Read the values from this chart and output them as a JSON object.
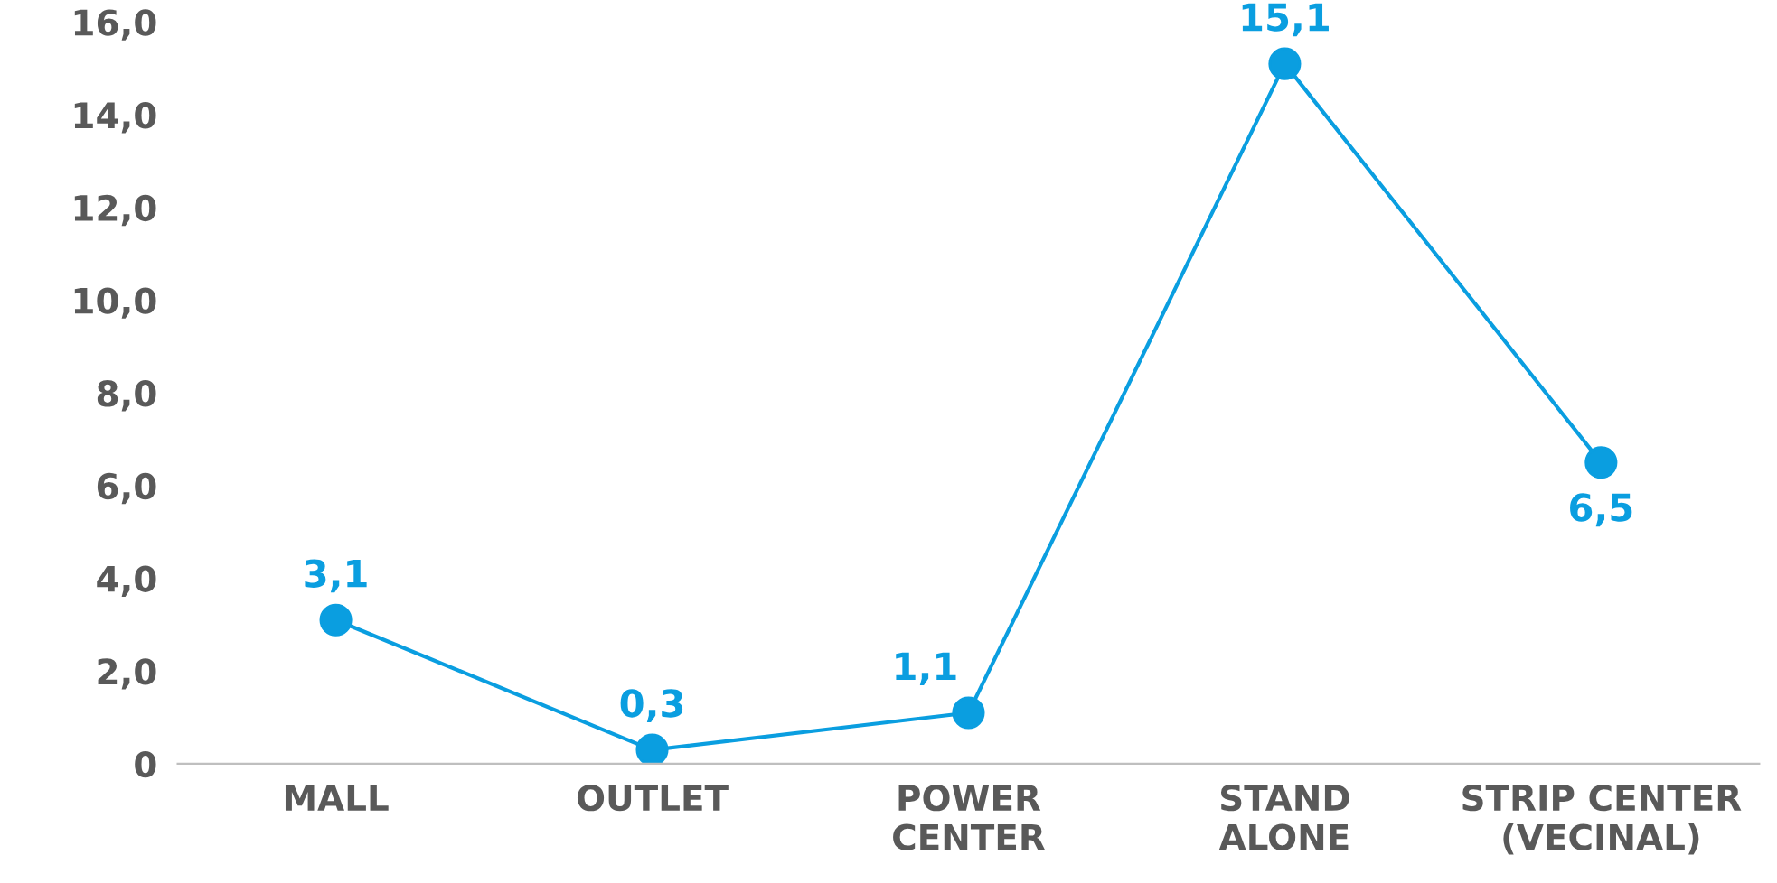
{
  "chart_data": {
    "type": "line",
    "categories": [
      "MALL",
      "OUTLET",
      "POWER\nCENTER",
      "STAND\nALONE",
      "STRIP CENTER\n(VECINAL)"
    ],
    "series": [
      {
        "color": "#0a9ee0",
        "values": [
          3.1,
          0.3,
          1.1,
          15.1,
          6.5
        ],
        "value_labels": [
          "3,1",
          "0,3",
          "1,1",
          "15,1",
          "6,5"
        ]
      }
    ],
    "ylim": [
      0,
      16
    ],
    "yticks": [
      0,
      {
        "value": 2,
        "label": "2,0"
      },
      {
        "value": 4,
        "label": "4,0"
      },
      {
        "value": 6,
        "label": "6,0"
      },
      {
        "value": 8,
        "label": "8,0"
      },
      {
        "value": 10,
        "label": "10,0"
      },
      {
        "value": 12,
        "label": "12,0"
      },
      {
        "value": 14,
        "label": "14,0"
      },
      {
        "value": 16,
        "label": "16,0"
      }
    ],
    "grid": false,
    "legend": false,
    "marker": "circle",
    "line_style": "solid"
  }
}
